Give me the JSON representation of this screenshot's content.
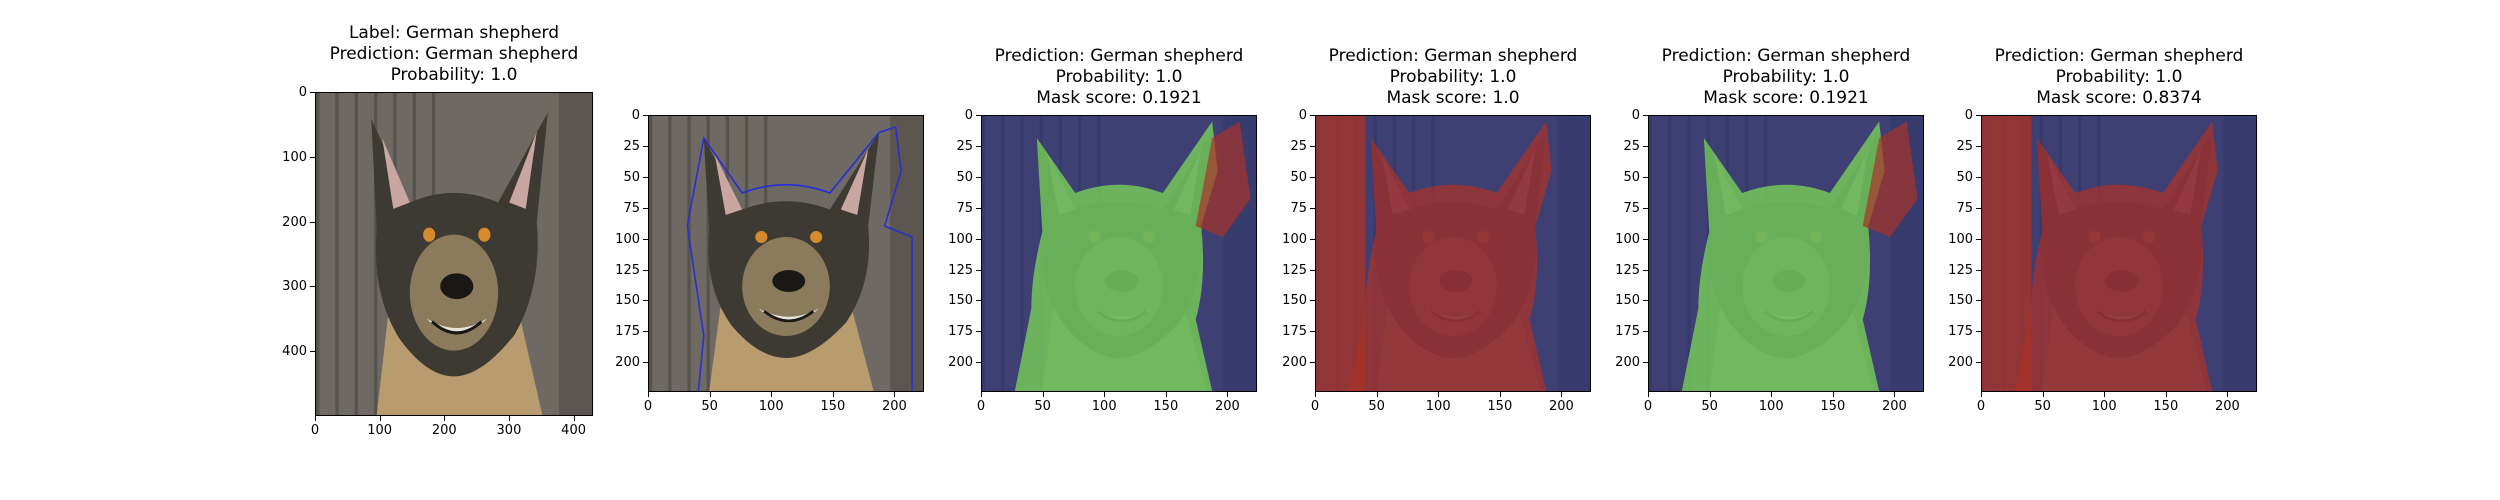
{
  "panels": [
    {
      "title_lines": [
        "Label: German shepherd",
        "Prediction: German shepherd",
        "Probability: 1.0"
      ],
      "image": "original-dog-photo",
      "mask": null,
      "x_ticks": [
        "0",
        "100",
        "200",
        "300",
        "400"
      ],
      "x_tick_values": [
        0,
        100,
        200,
        300,
        400
      ],
      "y_ticks": [
        "0",
        "100",
        "200",
        "300",
        "400"
      ],
      "y_tick_values": [
        0,
        100,
        200,
        300,
        400
      ],
      "x_extent": [
        0,
        430
      ],
      "y_extent": [
        0,
        500
      ]
    },
    {
      "title_lines": [],
      "image": "cropped-dog-photo-with-outline",
      "mask": "outline",
      "x_ticks": [
        "0",
        "50",
        "100",
        "150",
        "200"
      ],
      "x_tick_values": [
        0,
        50,
        100,
        150,
        200
      ],
      "y_ticks": [
        "0",
        "25",
        "50",
        "75",
        "100",
        "125",
        "150",
        "175",
        "200"
      ],
      "y_tick_values": [
        0,
        25,
        50,
        75,
        100,
        125,
        150,
        175,
        200
      ],
      "x_extent": [
        0,
        224
      ],
      "y_extent": [
        0,
        224
      ]
    },
    {
      "title_lines": [
        "Prediction: German shepherd",
        "Probability: 1.0",
        "Mask score: 0.1921"
      ],
      "image": "dog-photo-green-mask",
      "mask": "green-dog",
      "x_ticks": [
        "0",
        "50",
        "100",
        "150",
        "200"
      ],
      "x_tick_values": [
        0,
        50,
        100,
        150,
        200
      ],
      "y_ticks": [
        "0",
        "25",
        "50",
        "75",
        "100",
        "125",
        "150",
        "175",
        "200"
      ],
      "y_tick_values": [
        0,
        25,
        50,
        75,
        100,
        125,
        150,
        175,
        200
      ],
      "x_extent": [
        0,
        224
      ],
      "y_extent": [
        0,
        224
      ]
    },
    {
      "title_lines": [
        "Prediction: German shepherd",
        "Probability: 1.0",
        "Mask score: 1.0"
      ],
      "image": "dog-photo-red-mask",
      "mask": "red-dog-red-left",
      "x_ticks": [
        "0",
        "50",
        "100",
        "150",
        "200"
      ],
      "x_tick_values": [
        0,
        50,
        100,
        150,
        200
      ],
      "y_ticks": [
        "0",
        "25",
        "50",
        "75",
        "100",
        "125",
        "150",
        "175",
        "200"
      ],
      "y_tick_values": [
        0,
        25,
        50,
        75,
        100,
        125,
        150,
        175,
        200
      ],
      "x_extent": [
        0,
        224
      ],
      "y_extent": [
        0,
        224
      ]
    },
    {
      "title_lines": [
        "Prediction: German shepherd",
        "Probability: 1.0",
        "Mask score: 0.1921"
      ],
      "image": "dog-photo-green-mask",
      "mask": "green-dog",
      "x_ticks": [
        "0",
        "50",
        "100",
        "150",
        "200"
      ],
      "x_tick_values": [
        0,
        50,
        100,
        150,
        200
      ],
      "y_ticks": [
        "0",
        "25",
        "50",
        "75",
        "100",
        "125",
        "150",
        "175",
        "200"
      ],
      "y_tick_values": [
        0,
        25,
        50,
        75,
        100,
        125,
        150,
        175,
        200
      ],
      "x_extent": [
        0,
        224
      ],
      "y_extent": [
        0,
        224
      ]
    },
    {
      "title_lines": [
        "Prediction: German shepherd",
        "Probability: 1.0",
        "Mask score: 0.8374"
      ],
      "image": "dog-photo-red-mask",
      "mask": "red-dog-red-left",
      "x_ticks": [
        "0",
        "50",
        "100",
        "150",
        "200"
      ],
      "x_tick_values": [
        0,
        50,
        100,
        150,
        200
      ],
      "y_ticks": [
        "0",
        "25",
        "50",
        "75",
        "100",
        "125",
        "150",
        "175",
        "200"
      ],
      "y_tick_values": [
        0,
        25,
        50,
        75,
        100,
        125,
        150,
        175,
        200
      ],
      "x_extent": [
        0,
        224
      ],
      "y_extent": [
        0,
        224
      ]
    }
  ],
  "colors": {
    "mask_green": "#7ed957",
    "mask_red": "#a83228",
    "mask_blue": "#2a2f7a",
    "fur_dark": "#3d3a33",
    "fur_tan": "#b89b6e",
    "wall": "#6e6a63"
  }
}
